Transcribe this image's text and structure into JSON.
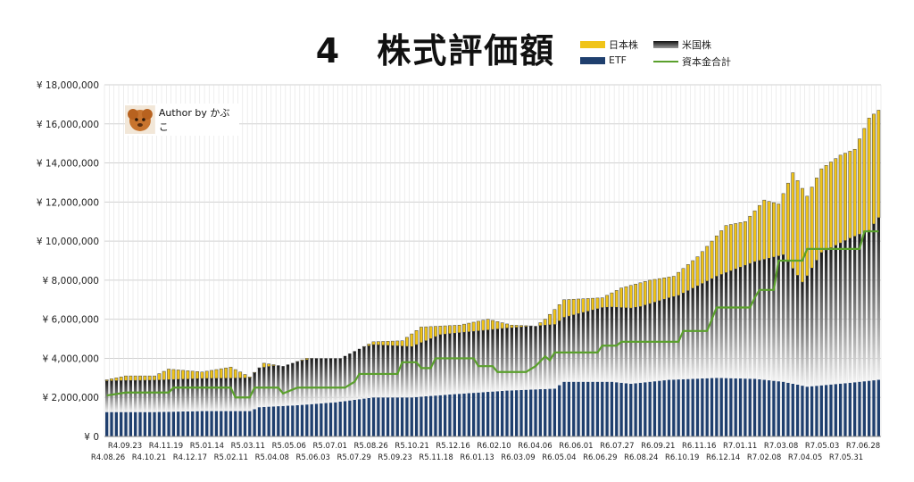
{
  "chart_data": {
    "type": "bar",
    "title": "4　株式評価額",
    "author": "Author by かぶこ",
    "ylim": [
      0,
      18000000
    ],
    "ytick_values": [
      0,
      2000000,
      4000000,
      6000000,
      8000000,
      10000000,
      12000000,
      14000000,
      16000000,
      18000000
    ],
    "ytick_labels": [
      "¥ 0",
      "¥ 2,000,000",
      "¥ 4,000,000",
      "¥ 6,000,000",
      "¥ 8,000,000",
      "¥ 10,000,000",
      "¥ 12,000,000",
      "¥ 14,000,000",
      "¥ 16,000,000",
      "¥ 18,000,000"
    ],
    "xtick_labels_top": [
      "R4.09.23",
      "R4.11.19",
      "R5.01.14",
      "R5.03.11",
      "R5.05.06",
      "R5.07.01",
      "R5.08.26",
      "R5.10.21",
      "R5.12.16",
      "R6.02.10",
      "R6.04.06",
      "R6.06.01",
      "R6.07.27",
      "R6.09.21",
      "R6.11.16",
      "R7.01.11",
      "R7.03.08",
      "R7.05.03",
      "R7.06.28"
    ],
    "xtick_labels_bottom": [
      "R4.08.26",
      "R4.10.21",
      "R4.12.17",
      "R5.02.11",
      "R5.04.08",
      "R5.06.03",
      "R5.07.29",
      "R5.09.23",
      "R5.11.18",
      "R6.01.13",
      "R6.03.09",
      "R6.05.04",
      "R6.06.29",
      "R6.08.24",
      "R6.10.19",
      "R6.12.14",
      "R7.02.08",
      "R7.04.05",
      "R7.05.31"
    ],
    "grid": true,
    "legend_position": "top-right",
    "legend": [
      {
        "name": "日本株",
        "color": "#f0c419",
        "kind": "bar"
      },
      {
        "name": "米国株",
        "color": "#555555",
        "kind": "gradient-bar"
      },
      {
        "name": "ETF",
        "color": "#1f3f6e",
        "kind": "bar"
      },
      {
        "name": "資本金合計",
        "color": "#5aa02c",
        "kind": "line"
      }
    ],
    "anchors": {
      "total": [
        [
          0,
          2900000
        ],
        [
          4,
          3100000
        ],
        [
          10,
          3100000
        ],
        [
          13,
          3450000
        ],
        [
          20,
          3300000
        ],
        [
          26,
          3550000
        ],
        [
          30,
          3050000
        ],
        [
          33,
          3750000
        ],
        [
          37,
          3600000
        ],
        [
          42,
          4000000
        ],
        [
          49,
          4000000
        ],
        [
          56,
          4850000
        ],
        [
          62,
          4900000
        ],
        [
          66,
          5600000
        ],
        [
          74,
          5700000
        ],
        [
          80,
          6000000
        ],
        [
          85,
          5700000
        ],
        [
          90,
          5650000
        ],
        [
          92,
          6000000
        ],
        [
          96,
          7000000
        ],
        [
          104,
          7100000
        ],
        [
          108,
          7600000
        ],
        [
          114,
          8000000
        ],
        [
          119,
          8200000
        ],
        [
          124,
          9200000
        ],
        [
          130,
          10800000
        ],
        [
          134,
          11000000
        ],
        [
          138,
          12100000
        ],
        [
          141,
          11900000
        ],
        [
          144,
          13500000
        ],
        [
          147,
          12300000
        ],
        [
          150,
          13700000
        ],
        [
          154,
          14400000
        ],
        [
          157,
          14700000
        ],
        [
          160,
          16300000
        ],
        [
          162,
          16700000
        ]
      ],
      "etf": [
        [
          0,
          1250000
        ],
        [
          10,
          1250000
        ],
        [
          20,
          1300000
        ],
        [
          30,
          1300000
        ],
        [
          32,
          1500000
        ],
        [
          40,
          1600000
        ],
        [
          48,
          1750000
        ],
        [
          56,
          2000000
        ],
        [
          64,
          2000000
        ],
        [
          72,
          2150000
        ],
        [
          84,
          2350000
        ],
        [
          94,
          2450000
        ],
        [
          96,
          2800000
        ],
        [
          106,
          2800000
        ],
        [
          110,
          2700000
        ],
        [
          118,
          2900000
        ],
        [
          128,
          3000000
        ],
        [
          136,
          2950000
        ],
        [
          142,
          2800000
        ],
        [
          147,
          2550000
        ],
        [
          156,
          2750000
        ],
        [
          162,
          2900000
        ]
      ],
      "us": [
        [
          0,
          1600000
        ],
        [
          30,
          1700000
        ],
        [
          32,
          2000000
        ],
        [
          56,
          2700000
        ],
        [
          64,
          2600000
        ],
        [
          70,
          3100000
        ],
        [
          84,
          3200000
        ],
        [
          96,
          3300000
        ],
        [
          104,
          3800000
        ],
        [
          112,
          3900000
        ],
        [
          120,
          4300000
        ],
        [
          128,
          5200000
        ],
        [
          136,
          6000000
        ],
        [
          142,
          6500000
        ],
        [
          146,
          5300000
        ],
        [
          150,
          6800000
        ],
        [
          156,
          7400000
        ],
        [
          160,
          7700000
        ],
        [
          162,
          8300000
        ]
      ],
      "capital": [
        [
          0,
          2100000
        ],
        [
          4,
          2250000
        ],
        [
          13,
          2250000
        ],
        [
          14,
          2500000
        ],
        [
          26,
          2500000
        ],
        [
          27,
          2000000
        ],
        [
          30,
          2000000
        ],
        [
          31,
          2500000
        ],
        [
          36,
          2500000
        ],
        [
          37,
          2200000
        ],
        [
          40,
          2500000
        ],
        [
          50,
          2500000
        ],
        [
          52,
          2800000
        ],
        [
          53,
          3200000
        ],
        [
          61,
          3200000
        ],
        [
          62,
          3800000
        ],
        [
          65,
          3800000
        ],
        [
          66,
          3500000
        ],
        [
          68,
          3500000
        ],
        [
          69,
          4000000
        ],
        [
          77,
          4000000
        ],
        [
          78,
          3600000
        ],
        [
          81,
          3600000
        ],
        [
          82,
          3300000
        ],
        [
          88,
          3300000
        ],
        [
          90,
          3600000
        ],
        [
          92,
          4100000
        ],
        [
          93,
          3900000
        ],
        [
          94,
          4300000
        ],
        [
          103,
          4300000
        ],
        [
          104,
          4650000
        ],
        [
          107,
          4650000
        ],
        [
          108,
          4850000
        ],
        [
          120,
          4850000
        ],
        [
          121,
          5400000
        ],
        [
          126,
          5400000
        ],
        [
          128,
          6600000
        ],
        [
          135,
          6600000
        ],
        [
          136,
          7100000
        ],
        [
          137,
          7500000
        ],
        [
          140,
          7500000
        ],
        [
          141,
          9000000
        ],
        [
          146,
          9000000
        ],
        [
          147,
          9600000
        ],
        [
          158,
          9600000
        ],
        [
          159,
          10500000
        ],
        [
          162,
          10500000
        ]
      ]
    },
    "n_bars": 163
  }
}
